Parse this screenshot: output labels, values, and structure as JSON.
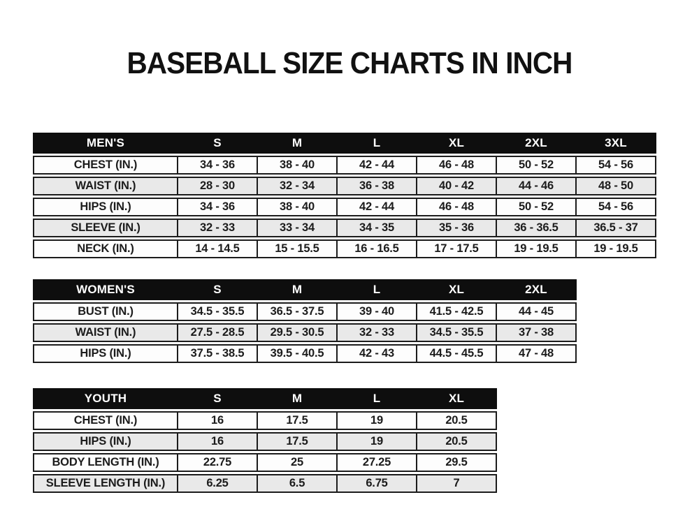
{
  "title": "BASEBALL SIZE CHARTS IN INCH",
  "colors": {
    "header_bg": "#0e0e0e",
    "header_text": "#ffffff",
    "row_bg": "#fdfdfd",
    "row_alt_bg": "#e9e9e9",
    "border": "#1c1c1c",
    "text": "#1c1c1c",
    "page_bg": "#ffffff"
  },
  "tables": {
    "mens": {
      "name": "MEN'S",
      "sizes": [
        "S",
        "M",
        "L",
        "XL",
        "2XL",
        "3XL"
      ],
      "rows": [
        {
          "label": "CHEST (IN.)",
          "values": [
            "34 - 36",
            "38 - 40",
            "42 - 44",
            "46 - 48",
            "50 - 52",
            "54 - 56"
          ]
        },
        {
          "label": "WAIST (IN.)",
          "values": [
            "28 - 30",
            "32 - 34",
            "36 - 38",
            "40 - 42",
            "44 - 46",
            "48 - 50"
          ]
        },
        {
          "label": "HIPS (IN.)",
          "values": [
            "34 - 36",
            "38 - 40",
            "42 - 44",
            "46 - 48",
            "50 - 52",
            "54 - 56"
          ]
        },
        {
          "label": "SLEEVE (IN.)",
          "values": [
            "32 - 33",
            "33 - 34",
            "34 - 35",
            "35 - 36",
            "36 - 36.5",
            "36.5 - 37"
          ]
        },
        {
          "label": "NECK (IN.)",
          "values": [
            "14 - 14.5",
            "15 - 15.5",
            "16 - 16.5",
            "17 - 17.5",
            "19 - 19.5",
            "19 - 19.5"
          ]
        }
      ]
    },
    "womens": {
      "name": "WOMEN'S",
      "sizes": [
        "S",
        "M",
        "L",
        "XL",
        "2XL"
      ],
      "rows": [
        {
          "label": "BUST (IN.)",
          "values": [
            "34.5 - 35.5",
            "36.5 - 37.5",
            "39 - 40",
            "41.5 - 42.5",
            "44 - 45"
          ]
        },
        {
          "label": "WAIST (IN.)",
          "values": [
            "27.5 - 28.5",
            "29.5 - 30.5",
            "32 - 33",
            "34.5 - 35.5",
            "37 - 38"
          ]
        },
        {
          "label": "HIPS (IN.)",
          "values": [
            "37.5 - 38.5",
            "39.5 - 40.5",
            "42 - 43",
            "44.5 - 45.5",
            "47 - 48"
          ]
        }
      ]
    },
    "youth": {
      "name": "YOUTH",
      "sizes": [
        "S",
        "M",
        "L",
        "XL"
      ],
      "rows": [
        {
          "label": "CHEST (IN.)",
          "values": [
            "16",
            "17.5",
            "19",
            "20.5"
          ]
        },
        {
          "label": "HIPS (IN.)",
          "values": [
            "16",
            "17.5",
            "19",
            "20.5"
          ]
        },
        {
          "label": "BODY LENGTH (IN.)",
          "values": [
            "22.75",
            "25",
            "27.25",
            "29.5"
          ]
        },
        {
          "label": "SLEEVE LENGTH (IN.)",
          "values": [
            "6.25",
            "6.5",
            "6.75",
            "7"
          ]
        }
      ]
    }
  }
}
